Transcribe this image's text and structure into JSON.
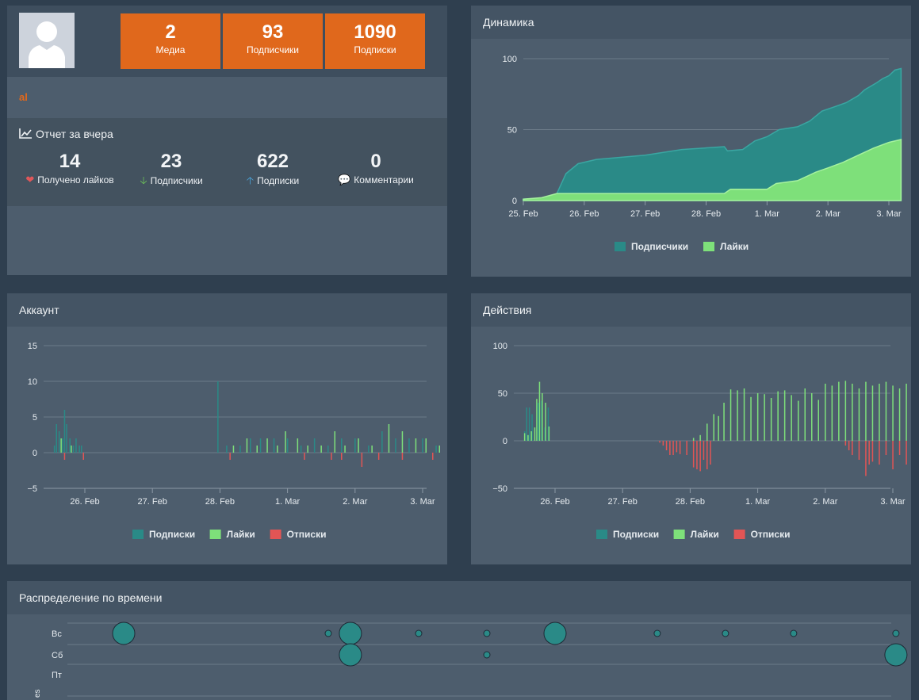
{
  "profile": {
    "stats": [
      {
        "value": "2",
        "label": "Медиа"
      },
      {
        "value": "93",
        "label": "Подписчики"
      },
      {
        "value": "1090",
        "label": "Подписки"
      }
    ],
    "username": "al",
    "report_title": "Отчет за вчера",
    "report": [
      {
        "value": "14",
        "label": "Получено лайков",
        "icon": "heart-icon",
        "icon_glyph": "❤",
        "color": "#e0575a"
      },
      {
        "value": "23",
        "label": "Подписчики",
        "icon": "arrow-down-icon",
        "icon_glyph": "🡣",
        "color": "#6cc05a"
      },
      {
        "value": "622",
        "label": "Подписки",
        "icon": "arrow-up-icon",
        "icon_glyph": "🡡",
        "color": "#4aa3d8"
      },
      {
        "value": "0",
        "label": "Комментарии",
        "icon": "comment-icon",
        "icon_glyph": "💬",
        "color": "#f0a030"
      }
    ]
  },
  "colors": {
    "teal": "#2a8a87",
    "green": "#7ee07a",
    "red": "#e25555",
    "orange": "#e0681c"
  },
  "panels": {
    "dynamics": "Динамика",
    "account": "Аккаунт",
    "actions": "Действия",
    "time_distribution": "Распределение по времени"
  },
  "chart_data": [
    {
      "id": "dynamics",
      "type": "area",
      "title": "Динамика",
      "x_labels": [
        "25. Feb",
        "26. Feb",
        "27. Feb",
        "28. Feb",
        "1. Mar",
        "2. Mar",
        "3. Mar"
      ],
      "ylim": [
        0,
        100
      ],
      "y_ticks": [
        0,
        50,
        100
      ],
      "series": [
        {
          "name": "Подписчики",
          "points": [
            [
              0,
              1
            ],
            [
              0.4,
              2
            ],
            [
              0.55,
              5
            ],
            [
              0.7,
              19
            ],
            [
              0.9,
              26
            ],
            [
              1.2,
              29
            ],
            [
              2,
              32
            ],
            [
              2.6,
              36
            ],
            [
              3.3,
              38
            ],
            [
              3.35,
              35
            ],
            [
              3.6,
              36
            ],
            [
              3.8,
              42
            ],
            [
              4.0,
              45
            ],
            [
              4.2,
              50
            ],
            [
              4.5,
              52
            ],
            [
              4.7,
              56
            ],
            [
              4.9,
              63
            ],
            [
              5.1,
              66
            ],
            [
              5.3,
              69
            ],
            [
              5.5,
              74
            ],
            [
              5.6,
              78
            ],
            [
              5.8,
              83
            ],
            [
              5.9,
              86
            ],
            [
              6,
              88
            ],
            [
              6.1,
              92
            ],
            [
              6.2,
              93
            ]
          ]
        },
        {
          "name": "Лайки",
          "points": [
            [
              0,
              1
            ],
            [
              0.3,
              2
            ],
            [
              0.55,
              5
            ],
            [
              1,
              5
            ],
            [
              3,
              5
            ],
            [
              3.3,
              5
            ],
            [
              3.4,
              8
            ],
            [
              4,
              8
            ],
            [
              4.15,
              12
            ],
            [
              4.5,
              14
            ],
            [
              4.8,
              20
            ],
            [
              5,
              23
            ],
            [
              5.25,
              27
            ],
            [
              5.5,
              32
            ],
            [
              5.75,
              37
            ],
            [
              6,
              41
            ],
            [
              6.2,
              43
            ]
          ]
        }
      ]
    },
    {
      "id": "account",
      "type": "bar",
      "title": "Аккаунт",
      "x_labels": [
        "26. Feb",
        "27. Feb",
        "28. Feb",
        "1. Mar",
        "2. Mar",
        "3. Mar"
      ],
      "ylim": [
        -5,
        15
      ],
      "y_ticks": [
        -5,
        0,
        5,
        10,
        15
      ],
      "series": [
        {
          "name": "Подписки",
          "points": [
            [
              -0.45,
              1
            ],
            [
              -0.42,
              4
            ],
            [
              -0.38,
              3
            ],
            [
              -0.33,
              2
            ],
            [
              -0.3,
              6
            ],
            [
              -0.27,
              4
            ],
            [
              -0.22,
              2
            ],
            [
              -0.17,
              1
            ],
            [
              -0.13,
              2
            ],
            [
              -0.08,
              1
            ],
            [
              -0.05,
              1
            ],
            [
              1.97,
              10
            ],
            [
              2.1,
              1
            ],
            [
              2.3,
              1
            ],
            [
              2.45,
              2
            ],
            [
              2.6,
              2
            ],
            [
              2.8,
              2
            ],
            [
              3.0,
              2
            ],
            [
              3.2,
              1
            ],
            [
              3.4,
              2
            ],
            [
              3.6,
              1
            ],
            [
              3.8,
              2
            ],
            [
              4.0,
              2
            ],
            [
              4.2,
              1
            ],
            [
              4.4,
              3
            ],
            [
              4.6,
              2
            ],
            [
              4.8,
              2
            ],
            [
              5.0,
              2
            ],
            [
              5.2,
              1
            ]
          ]
        },
        {
          "name": "Лайки",
          "points": [
            [
              -0.35,
              2
            ],
            [
              -0.2,
              1
            ],
            [
              2.2,
              1
            ],
            [
              2.4,
              2
            ],
            [
              2.55,
              1
            ],
            [
              2.7,
              2
            ],
            [
              2.85,
              1
            ],
            [
              2.97,
              3
            ],
            [
              3.15,
              2
            ],
            [
              3.3,
              1
            ],
            [
              3.5,
              1
            ],
            [
              3.7,
              3
            ],
            [
              3.85,
              1
            ],
            [
              4.05,
              2
            ],
            [
              4.25,
              1
            ],
            [
              4.5,
              4
            ],
            [
              4.7,
              3
            ],
            [
              4.9,
              2
            ],
            [
              5.05,
              2
            ],
            [
              5.25,
              1
            ],
            [
              5.45,
              1
            ],
            [
              5.6,
              1
            ]
          ]
        },
        {
          "name": "Отписки",
          "points": [
            [
              -0.3,
              -1
            ],
            [
              -0.02,
              -1
            ],
            [
              2.15,
              -1
            ],
            [
              3.25,
              -1
            ],
            [
              3.65,
              -1
            ],
            [
              3.8,
              -1
            ],
            [
              4.1,
              -2
            ],
            [
              4.35,
              -1
            ],
            [
              4.7,
              -1
            ],
            [
              5.15,
              -1
            ]
          ]
        }
      ]
    },
    {
      "id": "actions",
      "type": "bar",
      "title": "Действия",
      "x_labels": [
        "26. Feb",
        "27. Feb",
        "28. Feb",
        "1. Mar",
        "2. Mar",
        "3. Mar"
      ],
      "ylim": [
        -50,
        100
      ],
      "y_ticks": [
        -50,
        0,
        50,
        100
      ],
      "series": [
        {
          "name": "Подписки",
          "points": [
            [
              -0.45,
              10
            ],
            [
              -0.42,
              35
            ],
            [
              -0.38,
              35
            ],
            [
              -0.34,
              28
            ],
            [
              -0.3,
              12
            ],
            [
              -0.25,
              40
            ],
            [
              -0.2,
              42
            ],
            [
              -0.15,
              14
            ],
            [
              -0.1,
              35
            ]
          ]
        },
        {
          "name": "Лайки",
          "points": [
            [
              -0.45,
              8
            ],
            [
              -0.4,
              6
            ],
            [
              -0.35,
              10
            ],
            [
              -0.3,
              14
            ],
            [
              -0.27,
              44
            ],
            [
              -0.23,
              62
            ],
            [
              -0.19,
              50
            ],
            [
              -0.14,
              40
            ],
            [
              -0.09,
              15
            ],
            [
              2.05,
              3
            ],
            [
              2.15,
              6
            ],
            [
              2.25,
              18
            ],
            [
              2.35,
              28
            ],
            [
              2.42,
              26
            ],
            [
              2.5,
              40
            ],
            [
              2.6,
              54
            ],
            [
              2.7,
              53
            ],
            [
              2.8,
              55
            ],
            [
              2.9,
              46
            ],
            [
              3.0,
              50
            ],
            [
              3.1,
              49
            ],
            [
              3.2,
              45
            ],
            [
              3.3,
              52
            ],
            [
              3.4,
              53
            ],
            [
              3.5,
              48
            ],
            [
              3.6,
              42
            ],
            [
              3.7,
              55
            ],
            [
              3.8,
              50
            ],
            [
              3.9,
              43
            ],
            [
              4.0,
              60
            ],
            [
              4.1,
              58
            ],
            [
              4.2,
              62
            ],
            [
              4.3,
              63
            ],
            [
              4.4,
              60
            ],
            [
              4.5,
              55
            ],
            [
              4.6,
              62
            ],
            [
              4.7,
              58
            ],
            [
              4.8,
              60
            ],
            [
              4.9,
              62
            ],
            [
              5.0,
              58
            ],
            [
              5.1,
              55
            ],
            [
              5.2,
              60
            ],
            [
              5.3,
              62
            ],
            [
              5.4,
              63
            ],
            [
              5.5,
              60
            ]
          ]
        },
        {
          "name": "Отписки",
          "points": [
            [
              1.55,
              -2
            ],
            [
              1.6,
              -5
            ],
            [
              1.65,
              -10
            ],
            [
              1.7,
              -15
            ],
            [
              1.75,
              -15
            ],
            [
              1.8,
              -12
            ],
            [
              1.85,
              -14
            ],
            [
              1.95,
              -15
            ],
            [
              2.05,
              -28
            ],
            [
              2.1,
              -30
            ],
            [
              2.15,
              -32
            ],
            [
              2.2,
              -20
            ],
            [
              2.25,
              -30
            ],
            [
              2.3,
              -25
            ],
            [
              4.3,
              -5
            ],
            [
              4.35,
              -10
            ],
            [
              4.4,
              -15
            ],
            [
              4.5,
              -20
            ],
            [
              4.6,
              -37
            ],
            [
              4.65,
              -25
            ],
            [
              4.7,
              -22
            ],
            [
              4.8,
              -25
            ],
            [
              4.9,
              -15
            ],
            [
              5.0,
              -30
            ],
            [
              5.1,
              -15
            ],
            [
              5.2,
              -25
            ],
            [
              5.3,
              -32
            ],
            [
              5.4,
              -25
            ],
            [
              5.5,
              -20
            ]
          ]
        }
      ]
    },
    {
      "id": "time_distribution",
      "type": "scatter",
      "title": "Распределение по времени",
      "y_labels": [
        "Вс",
        "Сб",
        "Пт"
      ],
      "axis_partial_label": "es",
      "bubbles": [
        {
          "row": "Вс",
          "hour": 1,
          "size": 3
        },
        {
          "row": "Вс",
          "hour": 7,
          "size": 1
        },
        {
          "row": "Вс",
          "hour": 7.65,
          "size": 3
        },
        {
          "row": "Вс",
          "hour": 9.65,
          "size": 1
        },
        {
          "row": "Вс",
          "hour": 11.65,
          "size": 1
        },
        {
          "row": "Вс",
          "hour": 13.65,
          "size": 3
        },
        {
          "row": "Вс",
          "hour": 16.65,
          "size": 1
        },
        {
          "row": "Вс",
          "hour": 18.65,
          "size": 1
        },
        {
          "row": "Вс",
          "hour": 20.65,
          "size": 1
        },
        {
          "row": "Вс",
          "hour": 23.65,
          "size": 1
        },
        {
          "row": "Сб",
          "hour": 7.65,
          "size": 3
        },
        {
          "row": "Сб",
          "hour": 11.65,
          "size": 1
        },
        {
          "row": "Сб",
          "hour": 23.65,
          "size": 3
        }
      ]
    }
  ]
}
